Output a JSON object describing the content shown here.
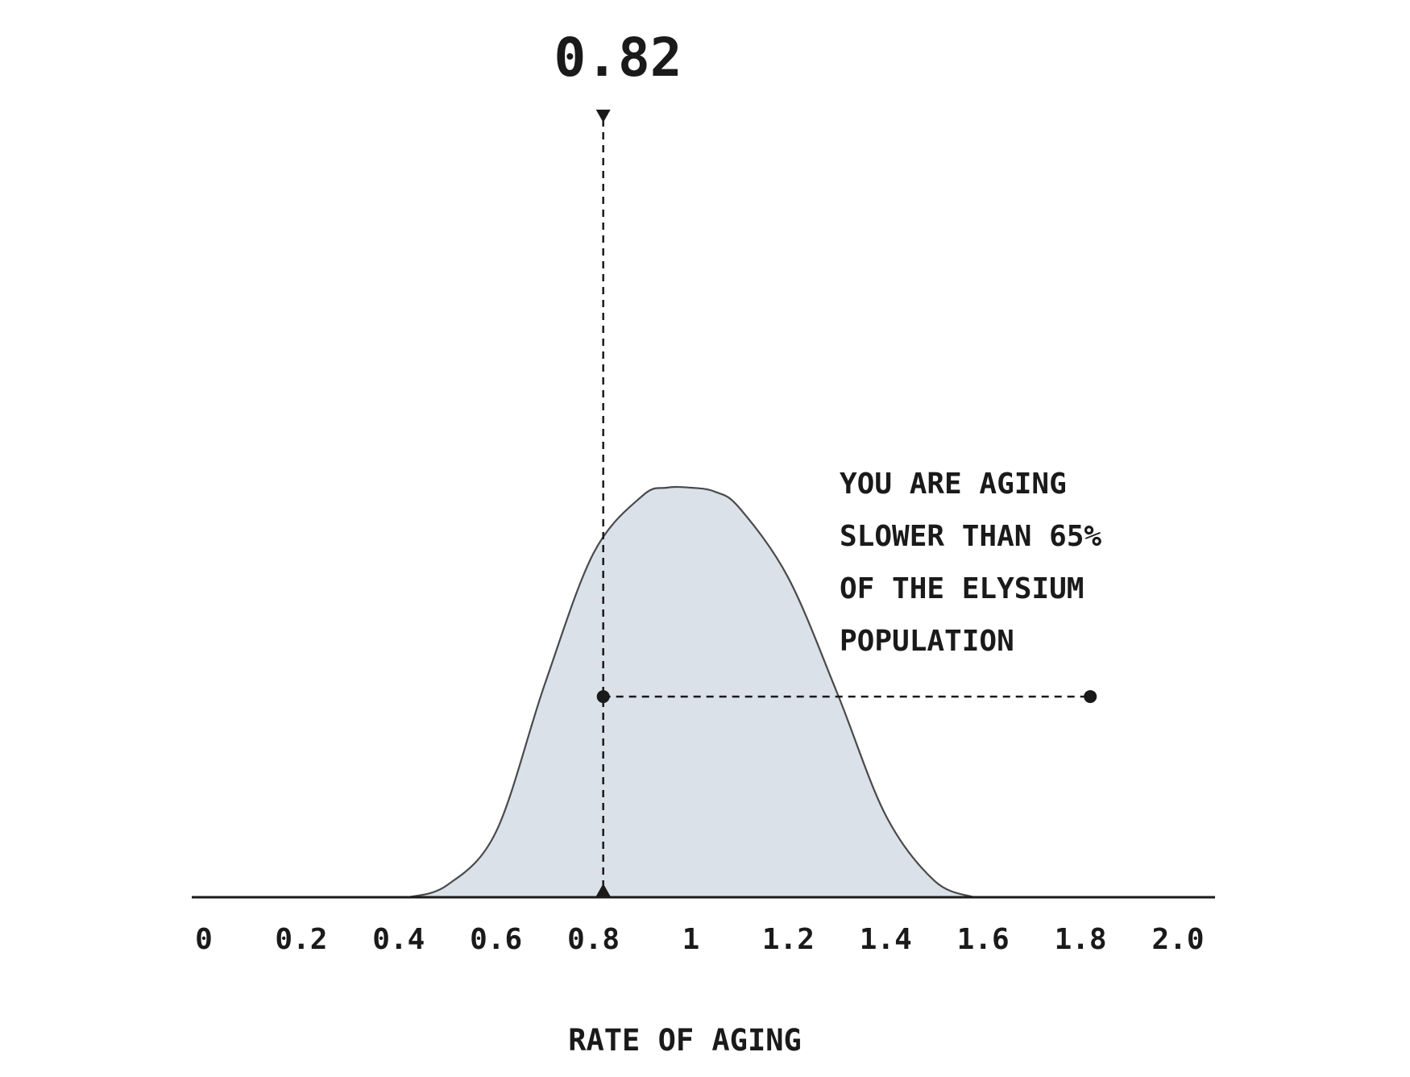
{
  "chart_data": {
    "type": "area",
    "xlabel": "RATE OF AGING",
    "ylabel": "",
    "xlim": [
      0,
      2.0
    ],
    "x_ticks": [
      "0",
      "0.2",
      "0.4",
      "0.6",
      "0.8",
      "1",
      "1.2",
      "1.4",
      "1.6",
      "1.8",
      "2.0"
    ],
    "grid": false,
    "legend": "none",
    "fill_color": "#dae1e9",
    "line_color": "#4a4a4a",
    "distribution": {
      "x": [
        0.42,
        0.5,
        0.6,
        0.7,
        0.8,
        0.9,
        0.95,
        1.0,
        1.05,
        1.1,
        1.2,
        1.3,
        1.4,
        1.5,
        1.58
      ],
      "y": [
        0.0,
        0.03,
        0.16,
        0.52,
        0.84,
        0.98,
        1.0,
        1.0,
        0.99,
        0.95,
        0.78,
        0.5,
        0.2,
        0.04,
        0.0
      ]
    },
    "marker": {
      "value": 0.82,
      "label": "0.82"
    },
    "horizontal_guide": {
      "x_start": 0.82,
      "x_end": 1.82,
      "y": 0.49
    },
    "annotation": {
      "lines": [
        "YOU ARE AGING",
        "SLOWER THAN 65%",
        "OF THE ELYSIUM",
        "POPULATION"
      ]
    }
  }
}
